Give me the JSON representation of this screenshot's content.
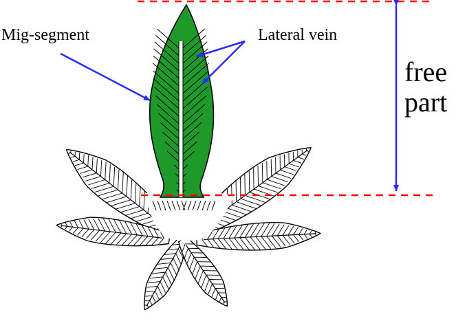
{
  "labels": {
    "mid_segment": "Mig-segment",
    "lateral_vein": "Lateral vein",
    "free_part_line1": "free",
    "free_part_line2": "part"
  },
  "colors": {
    "segment_fill": "#1f9a2a",
    "outline": "#000000",
    "arrow": "#2a2aff",
    "guide_line": "#ff0000",
    "background": "#ffffff"
  },
  "icons": {
    "pointer": "arrow",
    "measure": "double-headed-arrow"
  }
}
